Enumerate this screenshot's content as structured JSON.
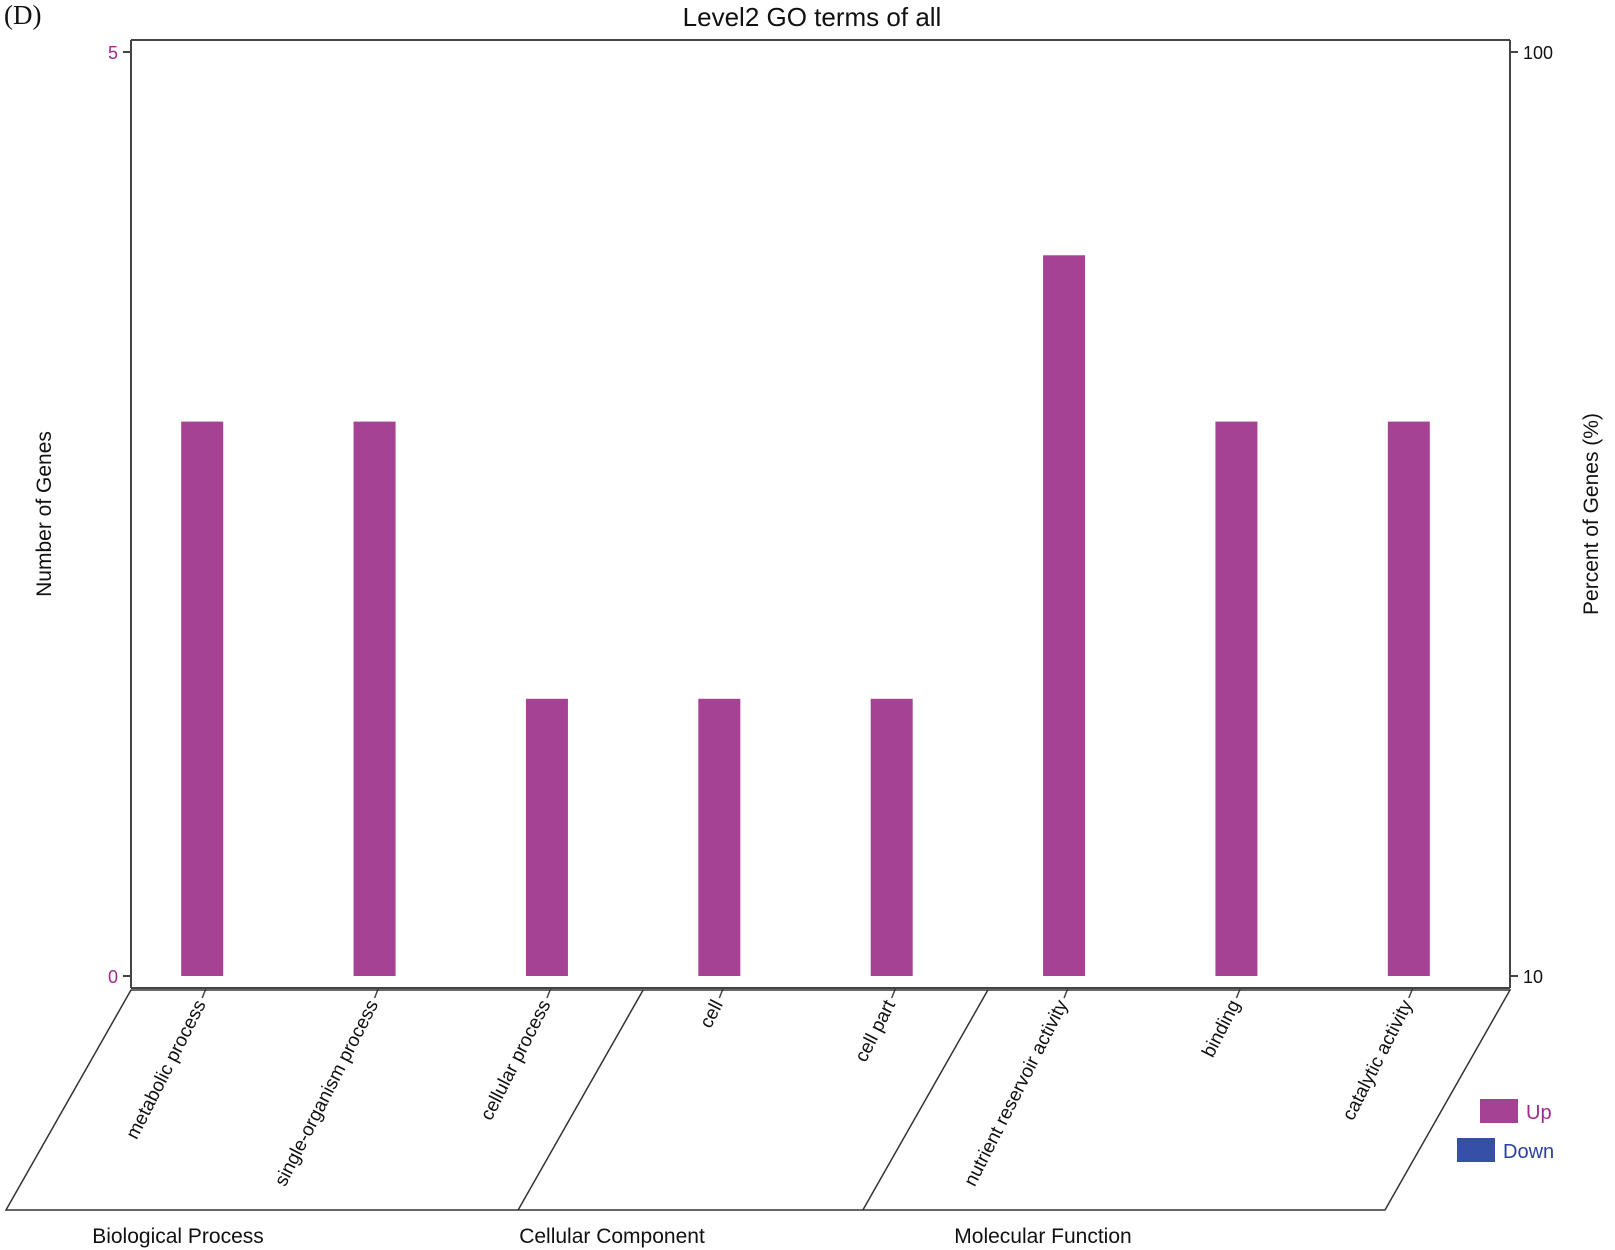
{
  "panel_label": "(D)",
  "chart_data": {
    "type": "bar",
    "title": "Level2 GO terms of all",
    "ylabel_left": "Number of Genes",
    "ylabel_right": "Percent of Genes (%)",
    "ylim_left": [
      0,
      5
    ],
    "yticks_left": [
      "0",
      "5"
    ],
    "ylim_right": [
      10,
      100
    ],
    "yticks_right": [
      "10",
      "100"
    ],
    "categories": [
      "metabolic process",
      "single-organism process",
      "cellular process",
      "cell",
      "cell part",
      "nutrient reservoir activity",
      "binding",
      "catalytic activity"
    ],
    "groups": [
      {
        "name": "Biological Process",
        "start": 0,
        "end": 2
      },
      {
        "name": "Cellular Component",
        "start": 3,
        "end": 4
      },
      {
        "name": "Molecular Function",
        "start": 5,
        "end": 7
      }
    ],
    "series": [
      {
        "name": "Up",
        "color": "#a64294",
        "values": [
          3,
          3,
          1.5,
          1.5,
          1.5,
          3.9,
          3,
          3
        ]
      },
      {
        "name": "Down",
        "color": "#3650a8",
        "values": [
          0,
          0,
          0,
          0,
          0,
          0,
          0,
          0
        ]
      }
    ],
    "grid": false,
    "legend_position": "bottom-right"
  }
}
